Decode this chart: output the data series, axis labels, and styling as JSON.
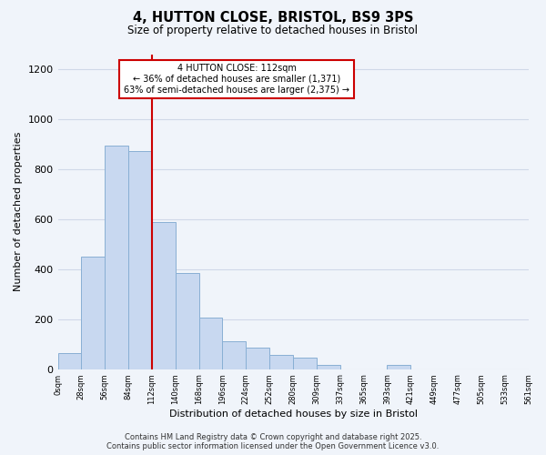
{
  "title": "4, HUTTON CLOSE, BRISTOL, BS9 3PS",
  "subtitle": "Size of property relative to detached houses in Bristol",
  "xlabel": "Distribution of detached houses by size in Bristol",
  "ylabel": "Number of detached properties",
  "bar_color": "#c8d8f0",
  "bar_edge_color": "#89afd4",
  "bin_labels": [
    "0sqm",
    "28sqm",
    "56sqm",
    "84sqm",
    "112sqm",
    "140sqm",
    "168sqm",
    "196sqm",
    "224sqm",
    "252sqm",
    "280sqm",
    "309sqm",
    "337sqm",
    "365sqm",
    "393sqm",
    "421sqm",
    "449sqm",
    "477sqm",
    "505sqm",
    "533sqm",
    "561sqm"
  ],
  "bar_heights": [
    65,
    450,
    895,
    875,
    590,
    385,
    205,
    110,
    85,
    55,
    45,
    15,
    0,
    0,
    15,
    0,
    0,
    0,
    0,
    0
  ],
  "ylim": [
    0,
    1260
  ],
  "yticks": [
    0,
    200,
    400,
    600,
    800,
    1000,
    1200
  ],
  "vline_x": 3,
  "vline_color": "#cc0000",
  "annotation_title": "4 HUTTON CLOSE: 112sqm",
  "annotation_line1": "← 36% of detached houses are smaller (1,371)",
  "annotation_line2": "63% of semi-detached houses are larger (2,375) →",
  "annotation_box_color": "#ffffff",
  "annotation_box_edge": "#cc0000",
  "footnote1": "Contains HM Land Registry data © Crown copyright and database right 2025.",
  "footnote2": "Contains public sector information licensed under the Open Government Licence v3.0.",
  "background_color": "#f0f4fa",
  "grid_color": "#d0d8e8"
}
